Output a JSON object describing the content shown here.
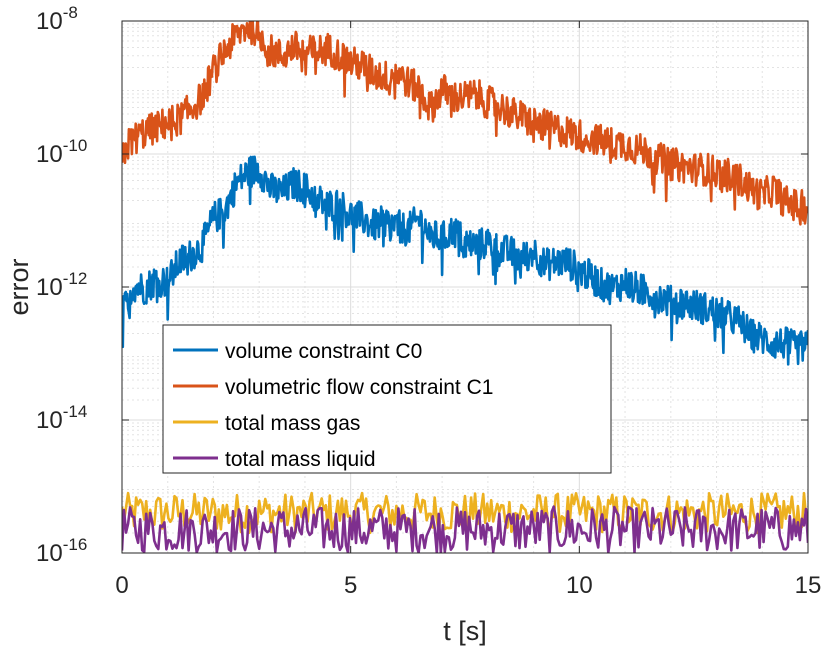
{
  "chart_data": {
    "type": "line",
    "xlabel": "t [s]",
    "ylabel": "error",
    "xlim": [
      0,
      15
    ],
    "ylim": [
      1e-16,
      1e-08
    ],
    "yscale": "log",
    "grid": true,
    "minor_grid": true,
    "legend_position": "inside-lower-left",
    "x_ticks": [
      {
        "value": 0,
        "label": "0"
      },
      {
        "value": 5,
        "label": "5"
      },
      {
        "value": 10,
        "label": "10"
      },
      {
        "value": 15,
        "label": "15"
      }
    ],
    "y_ticks": [
      {
        "value": 1e-16,
        "base": "10",
        "exp": "-16"
      },
      {
        "value": 1e-14,
        "base": "10",
        "exp": "-14"
      },
      {
        "value": 1e-12,
        "base": "10",
        "exp": "-12"
      },
      {
        "value": 1e-10,
        "base": "10",
        "exp": "-10"
      },
      {
        "value": 1e-08,
        "base": "10",
        "exp": "-8"
      }
    ],
    "series": [
      {
        "name": "volume constraint C0",
        "color": "#0072BD",
        "x": [
          0,
          0.1,
          0.25,
          0.5,
          0.75,
          1.0,
          1.25,
          1.5,
          1.75,
          2.0,
          2.25,
          2.5,
          2.75,
          3.0,
          3.25,
          3.5,
          3.75,
          4.0,
          4.25,
          4.5,
          4.75,
          5.0,
          5.25,
          5.5,
          5.75,
          6.0,
          6.25,
          6.5,
          6.75,
          7.0,
          7.25,
          7.5,
          7.75,
          8.0,
          8.25,
          8.5,
          8.75,
          9.0,
          9.25,
          9.5,
          9.75,
          10.0,
          10.25,
          10.5,
          10.75,
          11.0,
          11.25,
          11.5,
          11.75,
          12.0,
          12.25,
          12.5,
          12.75,
          13.0,
          13.25,
          13.5,
          13.75,
          14.0,
          14.25,
          14.5,
          14.75,
          15.0
        ],
        "y": [
          3e-13,
          5e-13,
          9e-13,
          8e-13,
          1.1e-12,
          1e-12,
          2e-12,
          2.5e-12,
          3.5e-12,
          9e-12,
          1.2e-11,
          3e-11,
          4.5e-11,
          5e-11,
          2.5e-11,
          2.2e-11,
          3e-11,
          2.6e-11,
          1.8e-11,
          1.4e-11,
          1.5e-11,
          1e-11,
          9e-12,
          7e-12,
          8e-12,
          7e-12,
          6e-12,
          9e-12,
          5e-12,
          4.5e-12,
          6e-12,
          4e-12,
          3.5e-12,
          4e-12,
          3e-12,
          2.8e-12,
          2.2e-12,
          3e-12,
          1.8e-12,
          2e-12,
          2e-12,
          1.5e-12,
          1.2e-12,
          9e-13,
          8e-13,
          1e-12,
          8e-13,
          7e-13,
          6e-13,
          5e-13,
          5e-13,
          4.5e-13,
          4e-13,
          3.5e-13,
          3e-13,
          2.5e-13,
          1.6e-13,
          1.4e-13,
          1.2e-13,
          1.2e-13,
          1e-13,
          1.1e-13
        ]
      },
      {
        "name": "volumetric flow constraint C1",
        "color": "#D95319",
        "x": [
          0,
          0.1,
          0.25,
          0.5,
          0.75,
          1.0,
          1.25,
          1.5,
          1.75,
          2.0,
          2.25,
          2.5,
          2.75,
          3.0,
          3.25,
          3.5,
          3.75,
          4.0,
          4.25,
          4.5,
          4.75,
          5.0,
          5.25,
          5.5,
          5.75,
          6.0,
          6.25,
          6.5,
          6.75,
          7.0,
          7.25,
          7.5,
          7.75,
          8.0,
          8.25,
          8.5,
          8.75,
          9.0,
          9.25,
          9.5,
          9.75,
          10.0,
          10.25,
          10.5,
          10.75,
          11.0,
          11.25,
          11.5,
          11.75,
          12.0,
          12.25,
          12.5,
          12.75,
          13.0,
          13.25,
          13.5,
          13.75,
          14.0,
          14.25,
          14.5,
          14.75,
          15.0
        ],
        "y": [
          7e-11,
          1.1e-10,
          1.4e-10,
          1.8e-10,
          2.1e-10,
          2.5e-10,
          2.8e-10,
          4e-10,
          6e-10,
          1.5e-09,
          3e-09,
          5e-09,
          7e-09,
          6e-09,
          3e-09,
          2.5e-09,
          3.5e-09,
          2.8e-09,
          3e-09,
          3.2e-09,
          2.6e-09,
          2e-09,
          1.8e-09,
          1.4e-09,
          1.2e-09,
          1.5e-09,
          1e-09,
          8e-10,
          4e-10,
          8e-10,
          6e-10,
          6e-10,
          6.5e-10,
          5e-10,
          4.5e-10,
          3.5e-10,
          3e-10,
          2.5e-10,
          2.2e-10,
          2e-10,
          1.8e-10,
          1.6e-10,
          1.5e-10,
          1.3e-10,
          1.2e-10,
          1.2e-10,
          1e-10,
          9e-11,
          7e-11,
          6e-11,
          5.5e-11,
          5e-11,
          5e-11,
          4.5e-11,
          4e-11,
          3.5e-11,
          2.5e-11,
          2e-11,
          2.5e-11,
          1.6e-11,
          1.4e-11,
          1.3e-11
        ]
      },
      {
        "name": "total mass gas",
        "color": "#EDB120",
        "noise_band": [
          2e-16,
          8e-16
        ],
        "x_range": [
          0,
          15
        ]
      },
      {
        "name": "total mass liquid",
        "color": "#7E2F8E",
        "noise_band": [
          1e-16,
          5e-16
        ],
        "x_range": [
          0,
          15
        ]
      }
    ]
  }
}
